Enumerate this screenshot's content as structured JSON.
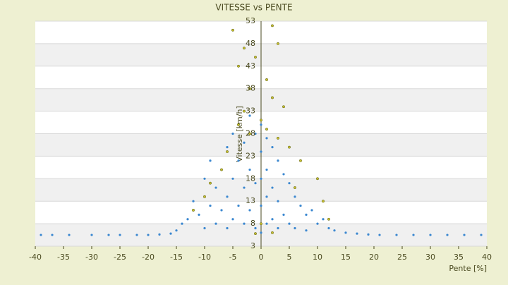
{
  "chart_data": {
    "type": "scatter",
    "title": "VITESSE vs PENTE",
    "x_label": "Pente [%]",
    "y_label": "Vitesse [km/h]",
    "xlim": [
      -40,
      40
    ],
    "xticks": [
      -40,
      -35,
      -30,
      -25,
      -20,
      -15,
      -10,
      -5,
      0,
      5,
      10,
      15,
      20,
      25,
      30,
      35,
      40
    ],
    "ylim": [
      3,
      53
    ],
    "yticks": [
      3,
      8,
      13,
      18,
      23,
      28,
      33,
      38,
      43,
      48,
      53
    ],
    "grid": true,
    "series": [
      {
        "color": "#3a87d0",
        "x": [
          -39,
          -37,
          -34,
          -30,
          -27,
          -25,
          -22,
          -20,
          -18,
          -16,
          -15,
          -14,
          -13,
          -12,
          -11,
          -10,
          -10,
          -9,
          -9,
          -8,
          -8,
          -7,
          -7,
          -6,
          -6,
          -6,
          -5,
          -5,
          -5,
          -4,
          -4,
          -4,
          -3,
          -3,
          -3,
          -2,
          -2,
          -2,
          -1,
          -1,
          -1,
          0,
          0,
          0,
          0,
          0,
          1,
          1,
          1,
          1,
          2,
          2,
          2,
          3,
          3,
          3,
          4,
          4,
          5,
          5,
          6,
          6,
          7,
          8,
          8,
          9,
          10,
          11,
          12,
          13,
          15,
          17,
          19,
          21,
          24,
          27,
          30,
          33,
          36,
          39
        ],
        "values": [
          5.5,
          5.5,
          5.5,
          5.5,
          5.5,
          5.5,
          5.5,
          5.5,
          5.6,
          5.8,
          6.5,
          8,
          9,
          13,
          10,
          18,
          7,
          12,
          22,
          16,
          8,
          20,
          11,
          25,
          14,
          7,
          28,
          18,
          9,
          30,
          22,
          12,
          26,
          16,
          8,
          32,
          20,
          11,
          28,
          17,
          7,
          30,
          24,
          18,
          12,
          6,
          27,
          20,
          14,
          8,
          25,
          16,
          9,
          22,
          13,
          7,
          19,
          10,
          17,
          8,
          14,
          7,
          12,
          10,
          6.5,
          11,
          8,
          9,
          7,
          6.5,
          6,
          5.8,
          5.6,
          5.5,
          5.5,
          5.5,
          5.5,
          5.5,
          5.5,
          5.5
        ]
      },
      {
        "color": "#c8c030",
        "x": [
          -5,
          -3,
          2,
          3,
          -4,
          1,
          -2,
          2,
          -3,
          0,
          -4,
          1,
          3,
          -6,
          5,
          -7,
          7,
          -9,
          10,
          -10,
          11,
          -12,
          12,
          -1,
          4,
          -2,
          0,
          2,
          -1,
          6
        ],
        "values": [
          51,
          47,
          52,
          48,
          43,
          40,
          38,
          36,
          33,
          31,
          30,
          29,
          27,
          24,
          25,
          20,
          22,
          17,
          18,
          14,
          13,
          11,
          9,
          45,
          34,
          28,
          8,
          6,
          5.8,
          16
        ]
      }
    ]
  }
}
